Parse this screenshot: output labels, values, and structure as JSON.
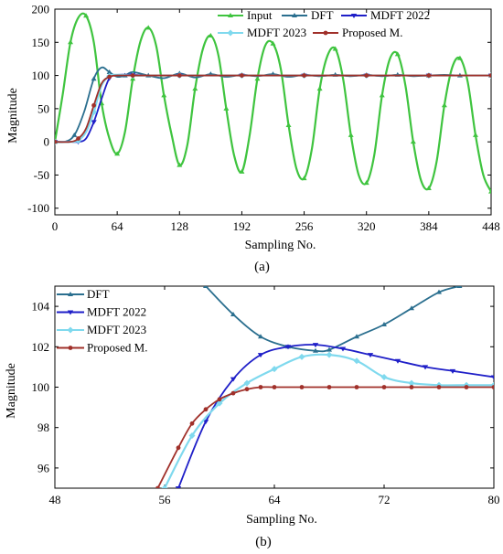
{
  "colors": {
    "Input": "#3fc43f",
    "DFT": "#2b6f8f",
    "MDFT 2022": "#1f1fc8",
    "MDFT 2023": "#7fd9ee",
    "Proposed M.": "#a0302a",
    "axis": "#000000"
  },
  "chart_data": [
    {
      "panel_label": "(a)",
      "type": "line",
      "xlabel": "Sampling No.",
      "ylabel": "Magnitude",
      "xlim": [
        0,
        448
      ],
      "ylim": [
        -110,
        200
      ],
      "xticks": [
        0,
        64,
        128,
        192,
        256,
        320,
        384,
        448
      ],
      "yticks": [
        -100,
        -50,
        0,
        50,
        100,
        150,
        200
      ],
      "legend_position": "top-right",
      "series": [
        {
          "name": "Input",
          "x": [
            0,
            8,
            16,
            24,
            32,
            40,
            48,
            56,
            64,
            72,
            80,
            88,
            96,
            104,
            112,
            120,
            128,
            136,
            144,
            152,
            160,
            168,
            176,
            184,
            192,
            200,
            208,
            216,
            224,
            232,
            240,
            248,
            256,
            264,
            272,
            280,
            288,
            296,
            304,
            312,
            320,
            328,
            336,
            344,
            352,
            360,
            368,
            376,
            384,
            392,
            400,
            408,
            416,
            424,
            432,
            440,
            448
          ],
          "y": [
            0,
            71,
            150,
            187,
            190,
            150,
            58,
            5,
            -18,
            15,
            95,
            152,
            172,
            145,
            70,
            10,
            -35,
            -5,
            80,
            140,
            160,
            130,
            50,
            -20,
            -45,
            10,
            95,
            145,
            148,
            110,
            25,
            -40,
            -55,
            -10,
            80,
            130,
            140,
            95,
            10,
            -50,
            -62,
            -20,
            70,
            125,
            132,
            85,
            0,
            -58,
            -70,
            -30,
            55,
            112,
            126,
            90,
            10,
            -50,
            -75
          ]
        },
        {
          "name": "DFT",
          "x": [
            0,
            10,
            20,
            30,
            40,
            48,
            56,
            64,
            72,
            80,
            96,
            112,
            128,
            144,
            160,
            176,
            192,
            208,
            224,
            240,
            256,
            272,
            288,
            304,
            320,
            336,
            352,
            368,
            384,
            400,
            416,
            432,
            448
          ],
          "y": [
            0,
            0,
            10,
            45,
            95,
            112,
            105,
            98,
            100,
            105,
            100,
            96,
            103,
            97,
            102,
            98,
            101,
            99,
            102,
            98,
            101,
            99,
            101,
            99,
            101,
            99,
            101,
            99,
            100,
            101,
            100,
            100,
            100
          ]
        },
        {
          "name": "MDFT 2022",
          "x": [
            0,
            16,
            24,
            32,
            40,
            48,
            56,
            64,
            80,
            96,
            128,
            160,
            192,
            224,
            256,
            288,
            320,
            352,
            384,
            416,
            448
          ],
          "y": [
            0,
            0,
            0,
            5,
            30,
            65,
            96,
            101,
            101,
            100,
            100,
            100,
            100,
            100,
            100,
            100,
            100,
            100,
            100,
            100,
            100
          ]
        },
        {
          "name": "MDFT 2023",
          "x": [
            0,
            16,
            24,
            32,
            40,
            48,
            56,
            64,
            80,
            96,
            128,
            160,
            192,
            224,
            256,
            288,
            320,
            352,
            384,
            416,
            448
          ],
          "y": [
            0,
            0,
            2,
            15,
            45,
            85,
            99,
            101,
            100,
            100,
            100,
            100,
            100,
            100,
            100,
            100,
            100,
            100,
            100,
            100,
            100
          ]
        },
        {
          "name": "Proposed M.",
          "x": [
            0,
            16,
            24,
            32,
            40,
            48,
            56,
            64,
            80,
            96,
            128,
            160,
            192,
            224,
            256,
            288,
            320,
            352,
            384,
            416,
            448
          ],
          "y": [
            0,
            0,
            5,
            20,
            55,
            88,
            98,
            100,
            100,
            100,
            100,
            100,
            100,
            100,
            100,
            100,
            100,
            100,
            100,
            100,
            100
          ]
        }
      ]
    },
    {
      "panel_label": "(b)",
      "type": "line",
      "xlabel": "Sampling No.",
      "ylabel": "Magnitude",
      "xlim": [
        48,
        80
      ],
      "ylim": [
        95,
        105
      ],
      "xticks": [
        48,
        56,
        64,
        72,
        80
      ],
      "yticks": [
        96,
        98,
        100,
        102,
        104
      ],
      "legend_position": "top-left",
      "series": [
        {
          "name": "DFT",
          "x": [
            59,
            61,
            63,
            65,
            67,
            68,
            70,
            72,
            74,
            76,
            77.5
          ],
          "y": [
            105,
            103.6,
            102.5,
            102.0,
            101.8,
            101.85,
            102.5,
            103.1,
            103.9,
            104.7,
            105
          ]
        },
        {
          "name": "MDFT 2022",
          "x": [
            57,
            59,
            61,
            63,
            65,
            67,
            69,
            71,
            73,
            75,
            77,
            80
          ],
          "y": [
            95.0,
            98.3,
            100.4,
            101.6,
            102.0,
            102.1,
            101.9,
            101.6,
            101.3,
            101.0,
            100.8,
            100.5
          ]
        },
        {
          "name": "MDFT 2023",
          "x": [
            56,
            58,
            60,
            62,
            64,
            66,
            68,
            70,
            72,
            74,
            76,
            78,
            80
          ],
          "y": [
            95.0,
            97.6,
            99.2,
            100.2,
            100.9,
            101.5,
            101.6,
            101.3,
            100.5,
            100.2,
            100.1,
            100.1,
            100.1
          ]
        },
        {
          "name": "Proposed M.",
          "x": [
            55.5,
            57,
            58,
            59,
            60,
            61,
            62,
            63,
            64,
            66,
            68,
            70,
            72,
            74,
            76,
            78,
            80
          ],
          "y": [
            95.0,
            97.0,
            98.2,
            98.9,
            99.4,
            99.7,
            99.9,
            100.0,
            100.0,
            100.0,
            100.0,
            100.0,
            100.0,
            100.0,
            100.0,
            100.0,
            100.0
          ]
        }
      ]
    }
  ]
}
